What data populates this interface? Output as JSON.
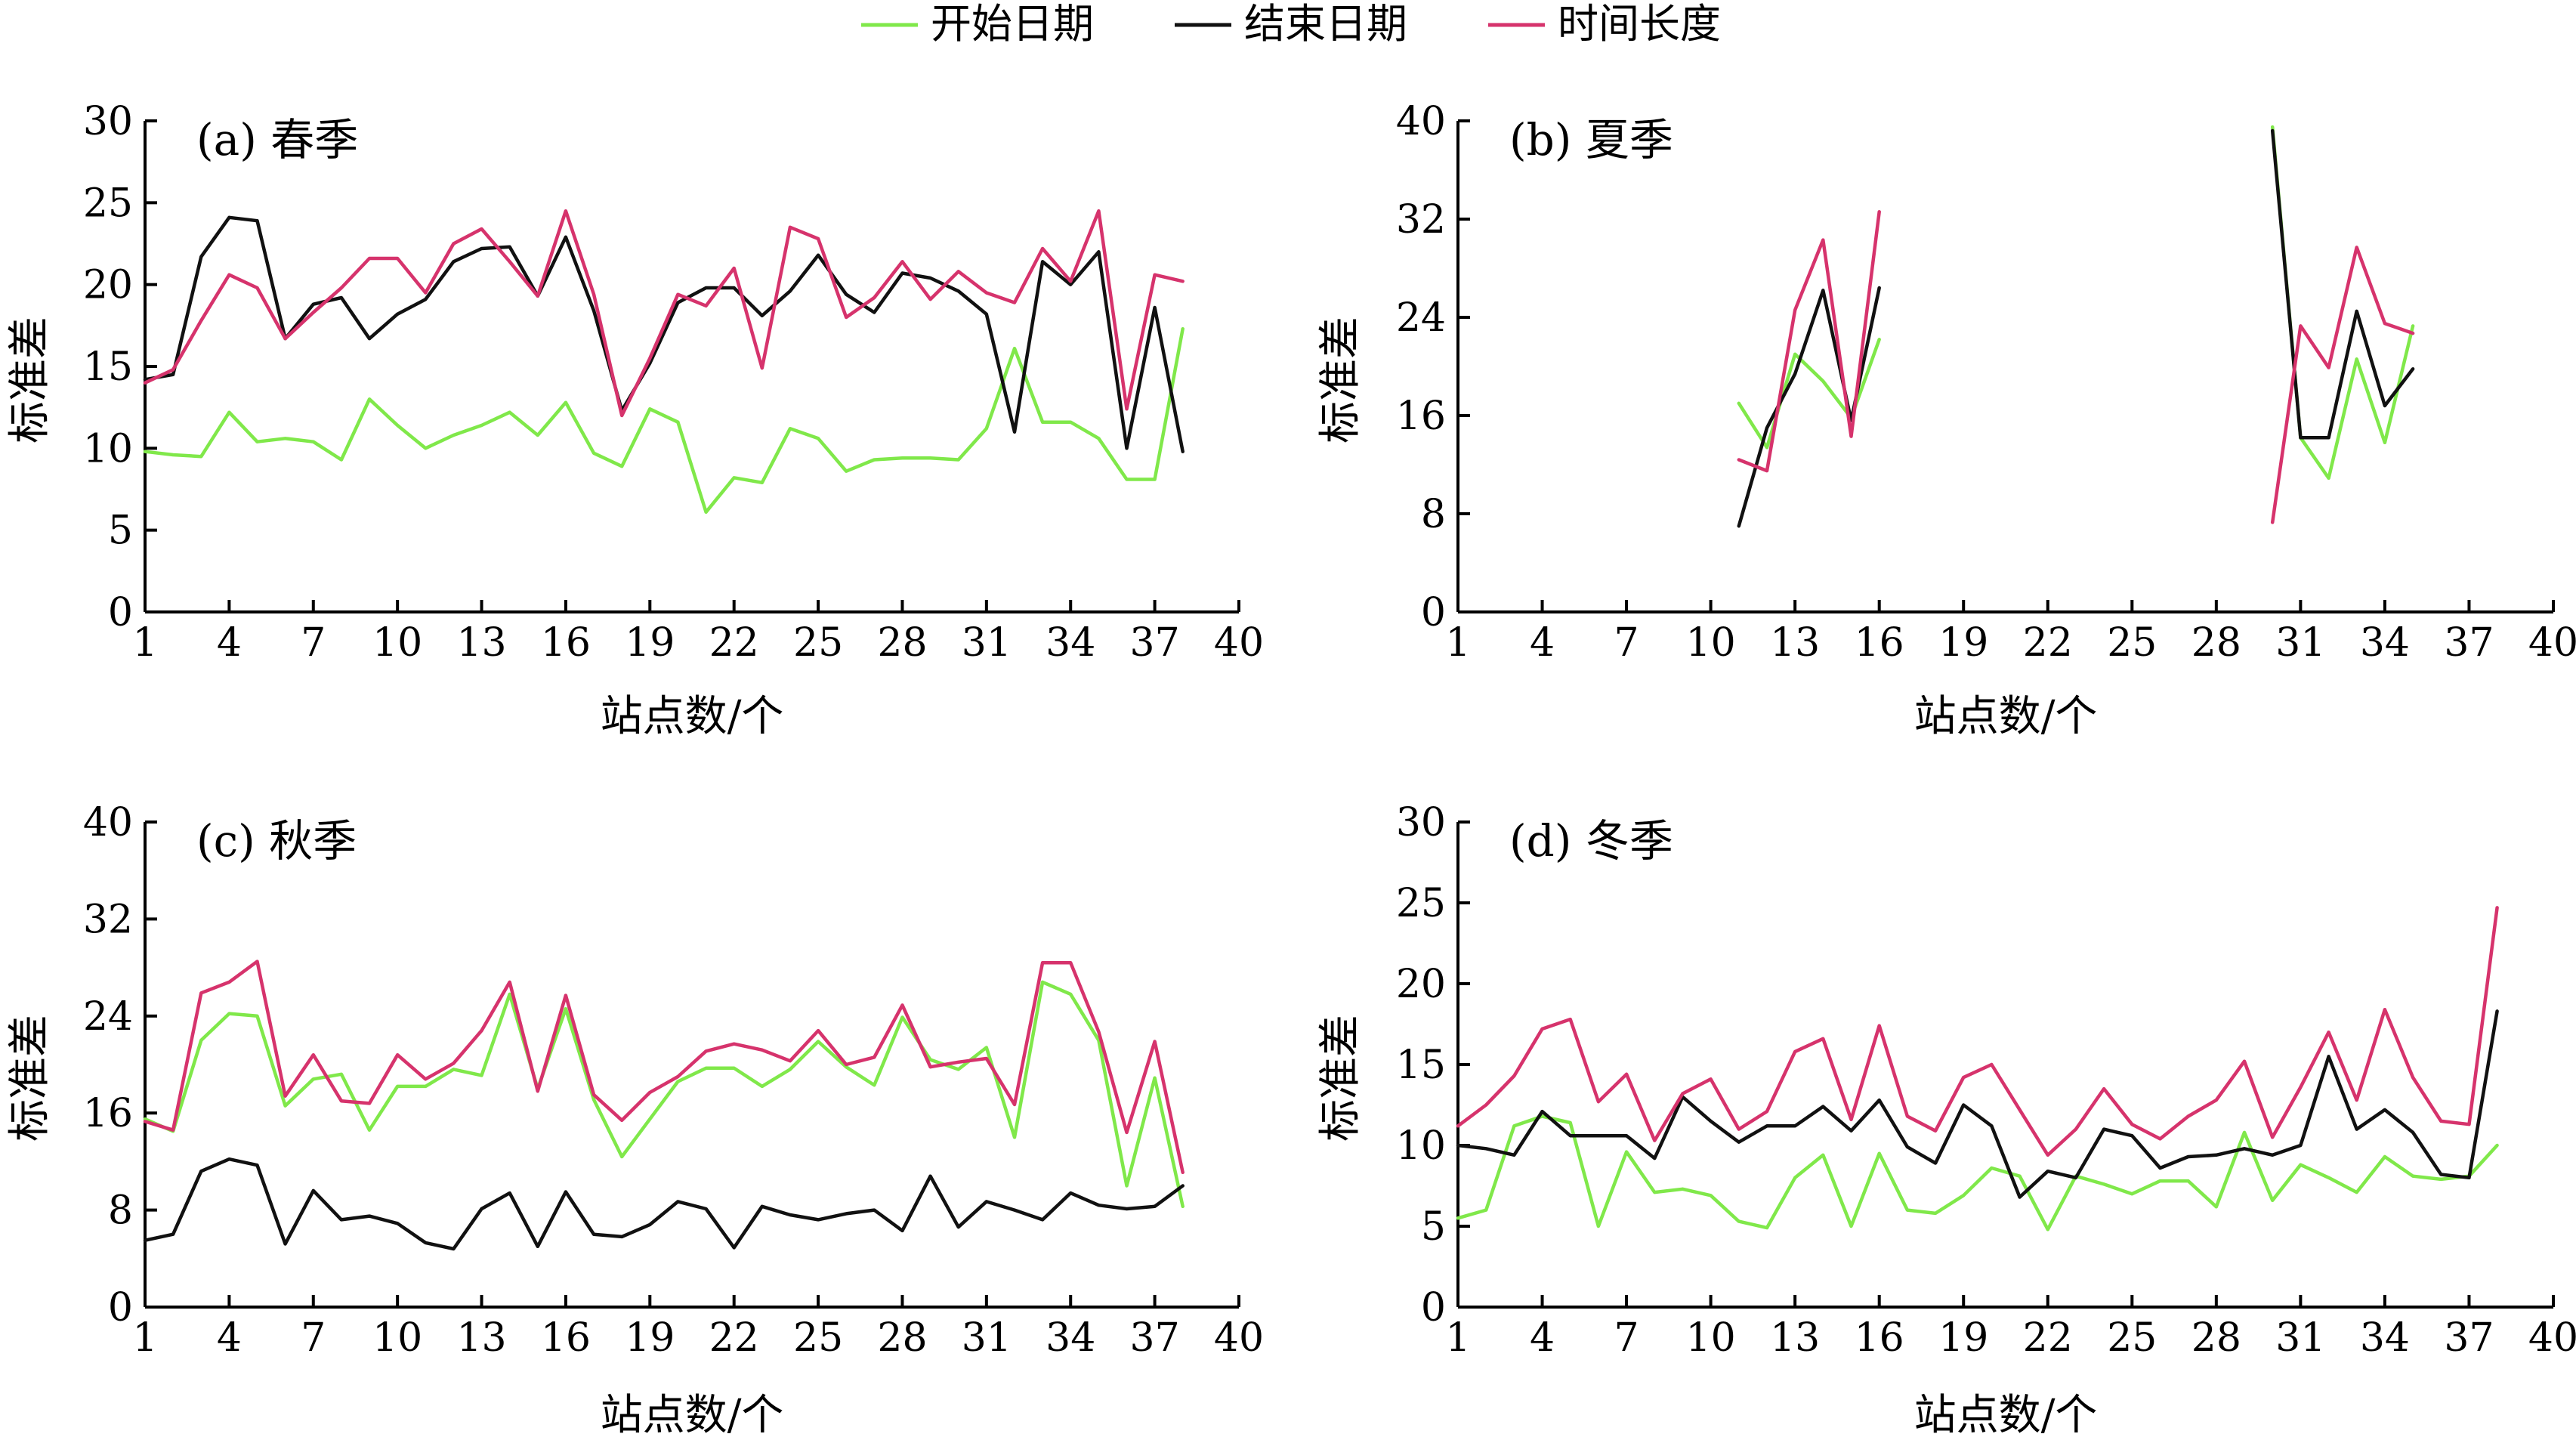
{
  "legend": {
    "items": [
      {
        "label": "开始日期",
        "color": "#80E84A"
      },
      {
        "label": "结束日期",
        "color": "#111111"
      },
      {
        "label": "时间长度",
        "color": "#D6336C"
      }
    ]
  },
  "chart_data": [
    {
      "type": "line",
      "panel_label": "(a) 春季",
      "xlabel": "站点数/个",
      "ylabel": "标准差",
      "xlim": [
        1,
        40
      ],
      "xticks": [
        1,
        4,
        7,
        10,
        13,
        16,
        19,
        22,
        25,
        28,
        31,
        34,
        37,
        40
      ],
      "ylim": [
        0,
        30
      ],
      "yticks": [
        0,
        5,
        10,
        15,
        20,
        25,
        30
      ],
      "x": [
        1,
        2,
        3,
        4,
        5,
        6,
        7,
        8,
        9,
        10,
        11,
        12,
        13,
        14,
        15,
        16,
        17,
        18,
        19,
        20,
        21,
        22,
        23,
        24,
        25,
        26,
        27,
        28,
        29,
        30,
        31,
        32,
        33,
        34,
        35,
        36,
        37,
        38
      ],
      "series": [
        {
          "name": "开始日期",
          "color": "#80E84A",
          "values": [
            9.8,
            9.6,
            9.5,
            12.2,
            10.4,
            10.6,
            10.4,
            9.3,
            13.0,
            11.4,
            10.0,
            10.8,
            11.4,
            12.2,
            10.8,
            12.8,
            9.7,
            8.9,
            12.4,
            11.6,
            6.1,
            8.2,
            7.9,
            11.2,
            10.6,
            8.6,
            9.3,
            9.4,
            9.4,
            9.3,
            11.2,
            16.1,
            11.6,
            11.6,
            10.6,
            8.1,
            8.1,
            17.3
          ]
        },
        {
          "name": "结束日期",
          "color": "#111111",
          "values": [
            14.2,
            14.5,
            21.7,
            24.1,
            23.9,
            16.7,
            18.8,
            19.2,
            16.7,
            18.2,
            19.1,
            21.4,
            22.2,
            22.3,
            19.3,
            22.9,
            18.4,
            12.3,
            15.2,
            18.9,
            19.8,
            19.8,
            18.1,
            19.6,
            21.8,
            19.4,
            18.3,
            20.7,
            20.4,
            19.6,
            18.2,
            11.0,
            21.4,
            20.0,
            22.0,
            10.0,
            18.6,
            9.8
          ]
        },
        {
          "name": "时间长度",
          "color": "#D6336C",
          "values": [
            14.0,
            14.8,
            17.8,
            20.6,
            19.8,
            16.7,
            18.3,
            19.8,
            21.6,
            21.6,
            19.5,
            22.5,
            23.4,
            21.4,
            19.3,
            24.5,
            19.4,
            12.0,
            15.5,
            19.4,
            18.7,
            21.0,
            14.9,
            23.5,
            22.8,
            18.0,
            19.2,
            21.4,
            19.1,
            20.8,
            19.5,
            18.9,
            22.2,
            20.2,
            24.5,
            12.4,
            20.6,
            20.2
          ]
        }
      ]
    },
    {
      "type": "line",
      "panel_label": "(b) 夏季",
      "xlabel": "站点数/个",
      "ylabel": "标准差",
      "xlim": [
        1,
        40
      ],
      "xticks": [
        1,
        4,
        7,
        10,
        13,
        16,
        19,
        22,
        25,
        28,
        31,
        34,
        37,
        40
      ],
      "ylim": [
        0,
        40
      ],
      "yticks": [
        0,
        8,
        16,
        24,
        32,
        40
      ],
      "x": [
        1,
        2,
        3,
        4,
        5,
        6,
        7,
        8,
        9,
        10,
        11,
        12,
        13,
        14,
        15,
        16,
        17,
        18,
        19,
        20,
        21,
        22,
        23,
        24,
        25,
        26,
        27,
        28,
        29,
        30,
        31,
        32,
        33,
        34,
        35,
        36,
        37,
        38
      ],
      "series": [
        {
          "name": "开始日期",
          "color": "#80E84A",
          "values": [
            null,
            null,
            null,
            null,
            null,
            null,
            null,
            null,
            null,
            null,
            17.0,
            13.4,
            21.0,
            18.8,
            15.8,
            22.2,
            null,
            null,
            null,
            null,
            null,
            null,
            null,
            null,
            null,
            null,
            null,
            null,
            null,
            39.5,
            14.2,
            10.9,
            20.6,
            13.8,
            23.3,
            null,
            null,
            null
          ]
        },
        {
          "name": "结束日期",
          "color": "#111111",
          "values": [
            null,
            null,
            null,
            null,
            null,
            null,
            null,
            null,
            null,
            null,
            7.0,
            15.0,
            19.4,
            26.2,
            15.6,
            26.4,
            null,
            null,
            null,
            null,
            null,
            null,
            null,
            null,
            null,
            null,
            null,
            null,
            null,
            39.2,
            14.2,
            14.2,
            24.5,
            16.8,
            19.8,
            null,
            null,
            null
          ]
        },
        {
          "name": "时间长度",
          "color": "#D6336C",
          "values": [
            null,
            null,
            null,
            null,
            null,
            null,
            null,
            null,
            null,
            null,
            12.4,
            11.5,
            24.6,
            30.3,
            14.3,
            32.6,
            null,
            null,
            null,
            null,
            null,
            null,
            null,
            null,
            null,
            null,
            null,
            null,
            null,
            7.3,
            23.3,
            19.9,
            29.7,
            23.5,
            22.7,
            null,
            null,
            null
          ]
        }
      ]
    },
    {
      "type": "line",
      "panel_label": "(c) 秋季",
      "xlabel": "站点数/个",
      "ylabel": "标准差",
      "xlim": [
        1,
        40
      ],
      "xticks": [
        1,
        4,
        7,
        10,
        13,
        16,
        19,
        22,
        25,
        28,
        31,
        34,
        37,
        40
      ],
      "ylim": [
        0,
        40
      ],
      "yticks": [
        0,
        8,
        16,
        24,
        32,
        40
      ],
      "x": [
        1,
        2,
        3,
        4,
        5,
        6,
        7,
        8,
        9,
        10,
        11,
        12,
        13,
        14,
        15,
        16,
        17,
        18,
        19,
        20,
        21,
        22,
        23,
        24,
        25,
        26,
        27,
        28,
        29,
        30,
        31,
        32,
        33,
        34,
        35,
        36,
        37,
        38
      ],
      "series": [
        {
          "name": "开始日期",
          "color": "#80E84A",
          "values": [
            15.5,
            14.5,
            22.0,
            24.2,
            24.0,
            16.6,
            18.8,
            19.2,
            14.6,
            18.2,
            18.2,
            19.6,
            19.1,
            25.8,
            18.0,
            24.6,
            17.1,
            12.4,
            15.5,
            18.6,
            19.7,
            19.7,
            18.2,
            19.6,
            21.9,
            19.8,
            18.3,
            23.9,
            20.4,
            19.6,
            21.4,
            14.0,
            26.8,
            25.8,
            22.0,
            10.0,
            18.9,
            8.3
          ]
        },
        {
          "name": "结束日期",
          "color": "#111111",
          "values": [
            5.5,
            6.0,
            11.2,
            12.2,
            11.7,
            5.2,
            9.6,
            7.2,
            7.5,
            6.9,
            5.3,
            4.8,
            8.1,
            9.4,
            5.0,
            9.5,
            6.0,
            5.8,
            6.8,
            8.7,
            8.1,
            4.9,
            8.3,
            7.6,
            7.2,
            7.7,
            8.0,
            6.3,
            10.8,
            6.6,
            8.7,
            8.0,
            7.2,
            9.4,
            8.4,
            8.1,
            8.3,
            10.0
          ]
        },
        {
          "name": "时间长度",
          "color": "#D6336C",
          "values": [
            15.3,
            14.6,
            25.9,
            26.8,
            28.5,
            17.4,
            20.8,
            17.0,
            16.8,
            20.8,
            18.8,
            20.1,
            22.8,
            26.8,
            17.8,
            25.7,
            17.5,
            15.4,
            17.7,
            19.0,
            21.1,
            21.7,
            21.2,
            20.3,
            22.8,
            20.0,
            20.6,
            24.9,
            19.8,
            20.2,
            20.5,
            16.7,
            28.4,
            28.4,
            22.7,
            14.4,
            21.9,
            11.1
          ]
        }
      ]
    },
    {
      "type": "line",
      "panel_label": "(d) 冬季",
      "xlabel": "站点数/个",
      "ylabel": "标准差",
      "xlim": [
        1,
        40
      ],
      "xticks": [
        1,
        4,
        7,
        10,
        13,
        16,
        19,
        22,
        25,
        28,
        31,
        34,
        37,
        40
      ],
      "ylim": [
        0,
        30
      ],
      "yticks": [
        0,
        5,
        10,
        15,
        20,
        25,
        30
      ],
      "x": [
        1,
        2,
        3,
        4,
        5,
        6,
        7,
        8,
        9,
        10,
        11,
        12,
        13,
        14,
        15,
        16,
        17,
        18,
        19,
        20,
        21,
        22,
        23,
        24,
        25,
        26,
        27,
        28,
        29,
        30,
        31,
        32,
        33,
        34,
        35,
        36,
        37,
        38
      ],
      "series": [
        {
          "name": "开始日期",
          "color": "#80E84A",
          "values": [
            5.5,
            6.0,
            11.2,
            11.8,
            11.4,
            5.0,
            9.6,
            7.1,
            7.3,
            6.9,
            5.3,
            4.9,
            8.0,
            9.4,
            5.0,
            9.5,
            6.0,
            5.8,
            6.9,
            8.6,
            8.1,
            4.8,
            8.1,
            7.6,
            7.0,
            7.8,
            7.8,
            6.2,
            10.8,
            6.6,
            8.8,
            8.0,
            7.1,
            9.3,
            8.1,
            7.9,
            8.1,
            10.0
          ]
        },
        {
          "name": "结束日期",
          "color": "#111111",
          "values": [
            10.0,
            9.8,
            9.4,
            12.1,
            10.6,
            10.6,
            10.6,
            9.2,
            13.0,
            11.5,
            10.2,
            11.2,
            11.2,
            12.4,
            10.9,
            12.8,
            9.9,
            8.9,
            12.5,
            11.2,
            6.8,
            8.4,
            8.0,
            11.0,
            10.6,
            8.6,
            9.3,
            9.4,
            9.8,
            9.4,
            10.0,
            15.5,
            11.0,
            12.2,
            10.8,
            8.2,
            8.0,
            18.3
          ]
        },
        {
          "name": "时间长度",
          "color": "#D6336C",
          "values": [
            11.2,
            12.5,
            14.3,
            17.2,
            17.8,
            12.7,
            14.4,
            10.3,
            13.2,
            14.1,
            11.0,
            12.1,
            15.8,
            16.6,
            11.6,
            17.4,
            11.8,
            10.9,
            14.2,
            15.0,
            12.2,
            9.4,
            11.0,
            13.5,
            11.3,
            10.4,
            11.8,
            12.8,
            15.2,
            10.5,
            13.6,
            17.0,
            12.8,
            18.4,
            14.2,
            11.5,
            11.3,
            24.7
          ]
        }
      ]
    }
  ]
}
